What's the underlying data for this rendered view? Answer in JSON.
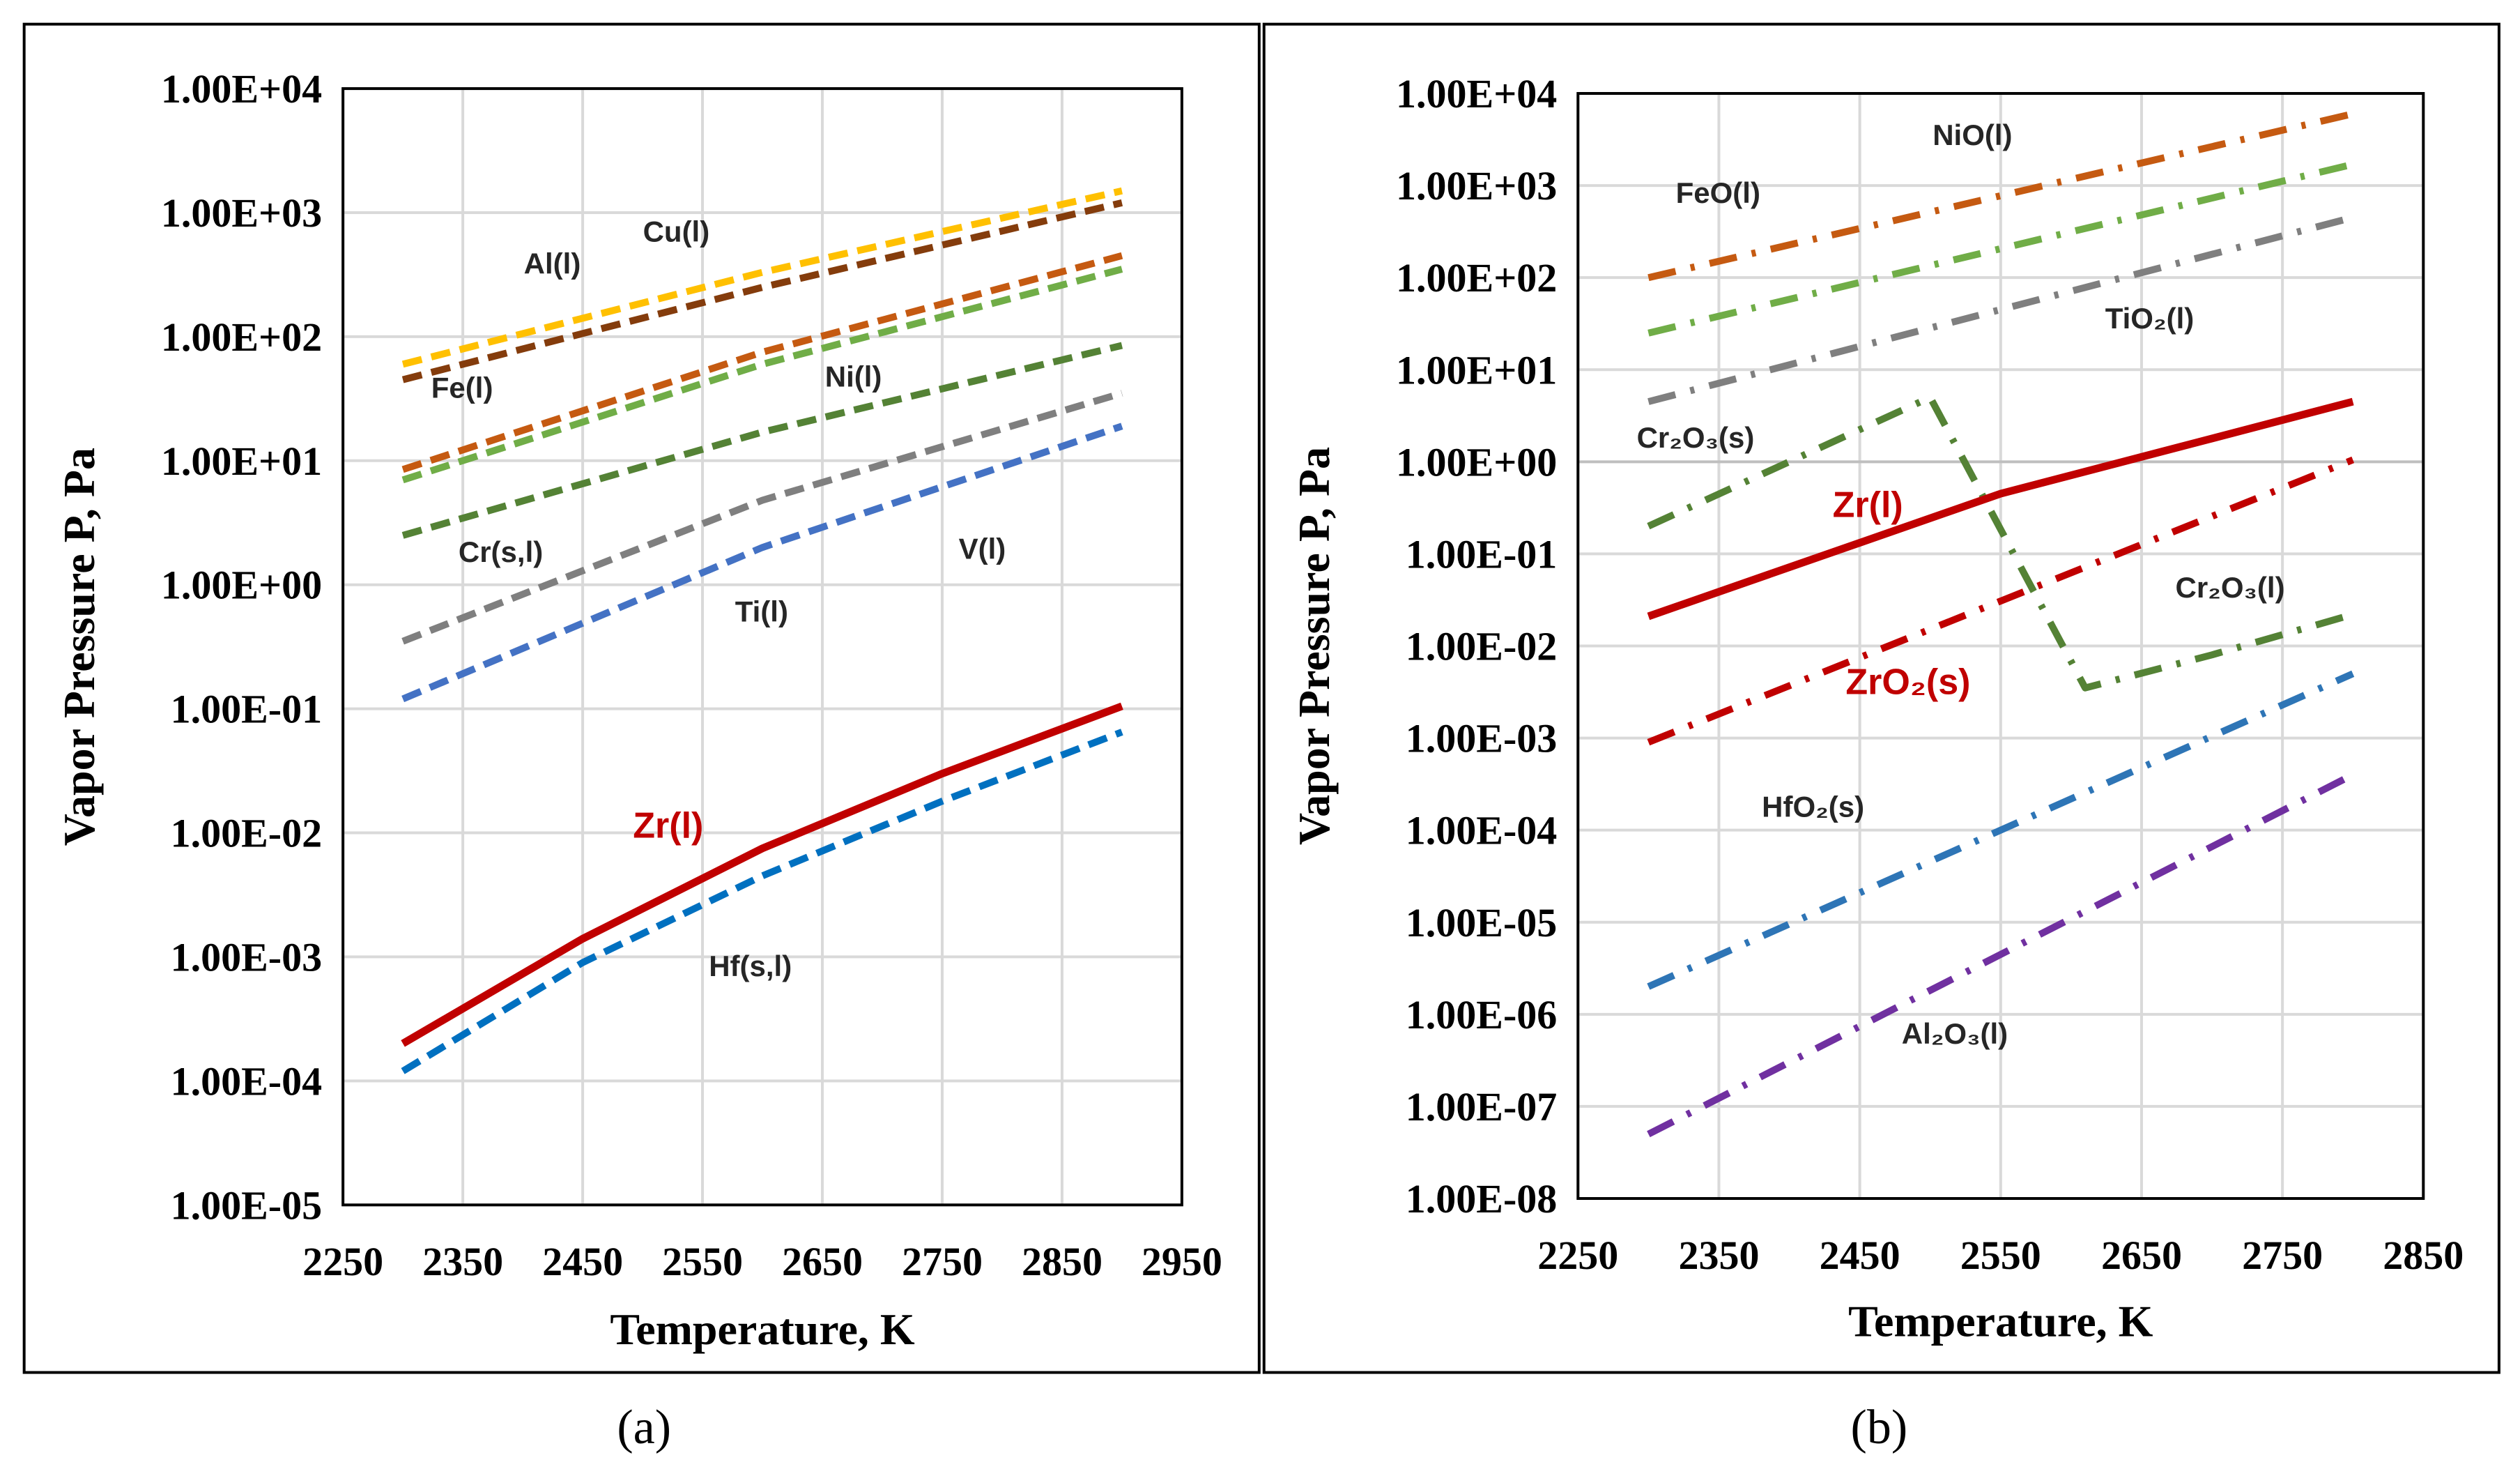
{
  "chart_data": [
    {
      "type": "line",
      "panel_label": "(a)",
      "xlabel": "Temperature, K",
      "ylabel": "Vapor Pressure P, Pa",
      "yscale": "log",
      "xlim": [
        2250,
        2950
      ],
      "ylim": [
        1e-05,
        10000.0
      ],
      "grid": true,
      "xticks": [
        "2250",
        "2350",
        "2450",
        "2550",
        "2650",
        "2750",
        "2850",
        "2950"
      ],
      "yticks": [
        "1.00E-05",
        "1.00E-04",
        "1.00E-03",
        "1.00E-02",
        "1.00E-01",
        "1.00E+00",
        "1.00E+01",
        "1.00E+02",
        "1.00E+03",
        "1.00E+04"
      ],
      "series": [
        {
          "name": "Cu(l)",
          "color": "#ffc000",
          "style": "dashed",
          "x": [
            2300,
            2600,
            2900
          ],
          "y": [
            60,
            330,
            1500
          ]
        },
        {
          "name": "Al(l)",
          "color": "#843c0c",
          "style": "dashed",
          "x": [
            2300,
            2600,
            2900
          ],
          "y": [
            45,
            250,
            1200
          ]
        },
        {
          "name": "Fe(l)",
          "color": "#c55a11",
          "style": "dashed",
          "x": [
            2300,
            2600,
            2900
          ],
          "y": [
            8.5,
            75,
            450
          ]
        },
        {
          "name": "Ni(l)",
          "color": "#70ad47",
          "style": "dashed",
          "x": [
            2300,
            2600,
            2900
          ],
          "y": [
            7,
            60,
            350
          ]
        },
        {
          "name": "Cr(s,l)",
          "color": "#548235",
          "style": "dashed",
          "x": [
            2300,
            2600,
            2900
          ],
          "y": [
            2.5,
            17,
            85
          ]
        },
        {
          "name": "Ti(l)",
          "color": "#7f7f7f",
          "style": "dashed",
          "x": [
            2300,
            2600,
            2900
          ],
          "y": [
            0.35,
            4.8,
            35
          ]
        },
        {
          "name": "V(l)",
          "color": "#4472c4",
          "style": "dashed",
          "x": [
            2300,
            2600,
            2900
          ],
          "y": [
            0.12,
            2.0,
            19
          ]
        },
        {
          "name": "Zr(l)",
          "color": "#c00000",
          "style": "solid",
          "x": [
            2300,
            2450,
            2600,
            2750,
            2900
          ],
          "y": [
            0.0002,
            0.0014,
            0.0075,
            0.03,
            0.105
          ]
        },
        {
          "name": "Hf(s,l)",
          "color": "#0070c0",
          "style": "dashed",
          "x": [
            2300,
            2450,
            2600,
            2750,
            2900
          ],
          "y": [
            0.00012,
            0.0009,
            0.0045,
            0.018,
            0.065
          ]
        }
      ]
    },
    {
      "type": "line",
      "panel_label": "(b)",
      "xlabel": "Temperature, K",
      "ylabel": "Vapor Pressure P, Pa",
      "yscale": "log",
      "xlim": [
        2250,
        2850
      ],
      "ylim": [
        1e-08,
        10000.0
      ],
      "grid": true,
      "xticks": [
        "2250",
        "2350",
        "2450",
        "2550",
        "2650",
        "2750",
        "2850"
      ],
      "yticks": [
        "1.00E-08",
        "1.00E-07",
        "1.00E-06",
        "1.00E-05",
        "1.00E-04",
        "1.00E-03",
        "1.00E-02",
        "1.00E-01",
        "1.00E+00",
        "1.00E+01",
        "1.00E+02",
        "1.00E+03",
        "1.00E+04"
      ],
      "series": [
        {
          "name": "NiO(l)",
          "color": "#c55a11",
          "style": "dashdot",
          "x": [
            2300,
            2800
          ],
          "y": [
            100,
            6000
          ]
        },
        {
          "name": "FeO(l)",
          "color": "#70ad47",
          "style": "dashdot",
          "x": [
            2300,
            2800
          ],
          "y": [
            25,
            1700
          ]
        },
        {
          "name": "TiO₂(l)",
          "color": "#7f7f7f",
          "style": "dashdot",
          "x": [
            2300,
            2800
          ],
          "y": [
            4.5,
            450
          ]
        },
        {
          "name": "Cr₂O₃(s)",
          "label2": "Cr₂O₃(l)",
          "color": "#548235",
          "style": "dashdot",
          "x": [
            2300,
            2400,
            2500,
            2610,
            2700,
            2800
          ],
          "y": [
            0.2,
            1.0,
            5.0,
            0.0035,
            0.008,
            0.022
          ]
        },
        {
          "name": "Zr(l)",
          "color": "#c00000",
          "style": "solid",
          "x": [
            2300,
            2550,
            2800
          ],
          "y": [
            0.021,
            0.45,
            4.5
          ]
        },
        {
          "name": "ZrO₂(s)",
          "color": "#c00000",
          "style": "dashdot",
          "x": [
            2300,
            2800
          ],
          "y": [
            0.0009,
            1.05
          ]
        },
        {
          "name": "HfO₂(s)",
          "color": "#2e75b6",
          "style": "dashdot",
          "x": [
            2300,
            2800
          ],
          "y": [
            2e-06,
            0.005
          ]
        },
        {
          "name": "Al₂O₃(l)",
          "color": "#7030a0",
          "style": "dashdot",
          "x": [
            2300,
            2800
          ],
          "y": [
            5e-08,
            0.0004
          ]
        }
      ]
    }
  ]
}
